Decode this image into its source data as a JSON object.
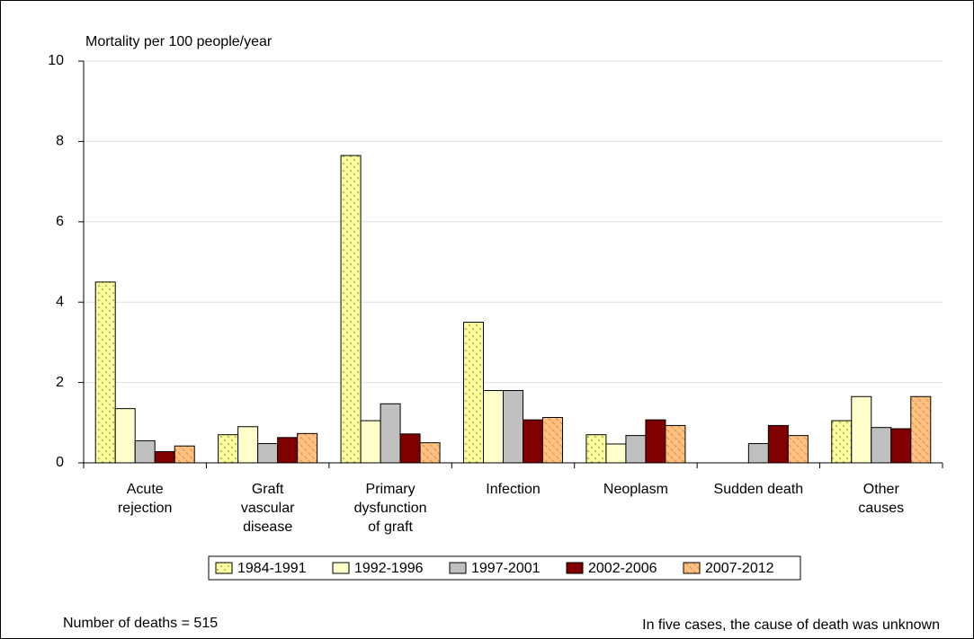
{
  "chart_data": {
    "type": "bar",
    "y_label": "Mortality per 100 people/year",
    "categories": [
      "Acute\nrejection",
      "Graft\nvascular\ndisease",
      "Primary\ndysfunction\nof graft",
      "Infection",
      "Neoplasm",
      "Sudden death",
      "Other\ncauses"
    ],
    "series": [
      {
        "name": "1984-1991",
        "color": "#ffff99",
        "pattern": "dots",
        "values": [
          4.5,
          0.7,
          7.65,
          3.5,
          0.7,
          0,
          1.05
        ]
      },
      {
        "name": "1992-1996",
        "color": "#ffffcc",
        "values": [
          1.35,
          0.9,
          1.05,
          1.8,
          0.47,
          0,
          1.65
        ]
      },
      {
        "name": "1997-2001",
        "color": "#c0c0c0",
        "values": [
          0.55,
          0.48,
          1.47,
          1.8,
          0.68,
          0.48,
          0.88
        ]
      },
      {
        "name": "2002-2006",
        "color": "#800000",
        "values": [
          0.28,
          0.63,
          0.72,
          1.07,
          1.07,
          0.93,
          0.85
        ]
      },
      {
        "name": "2007-2012",
        "color": "#ffc080",
        "pattern": "hatch",
        "values": [
          0.42,
          0.73,
          0.5,
          1.13,
          0.93,
          0.68,
          1.65
        ]
      }
    ],
    "ylim": [
      0,
      10
    ],
    "yticks": [
      0,
      2,
      4,
      6,
      8,
      10
    ],
    "grid": true,
    "footnote_left": "Number of deaths = 515",
    "footnote_right": "In five cases, the cause of death was unknown"
  }
}
